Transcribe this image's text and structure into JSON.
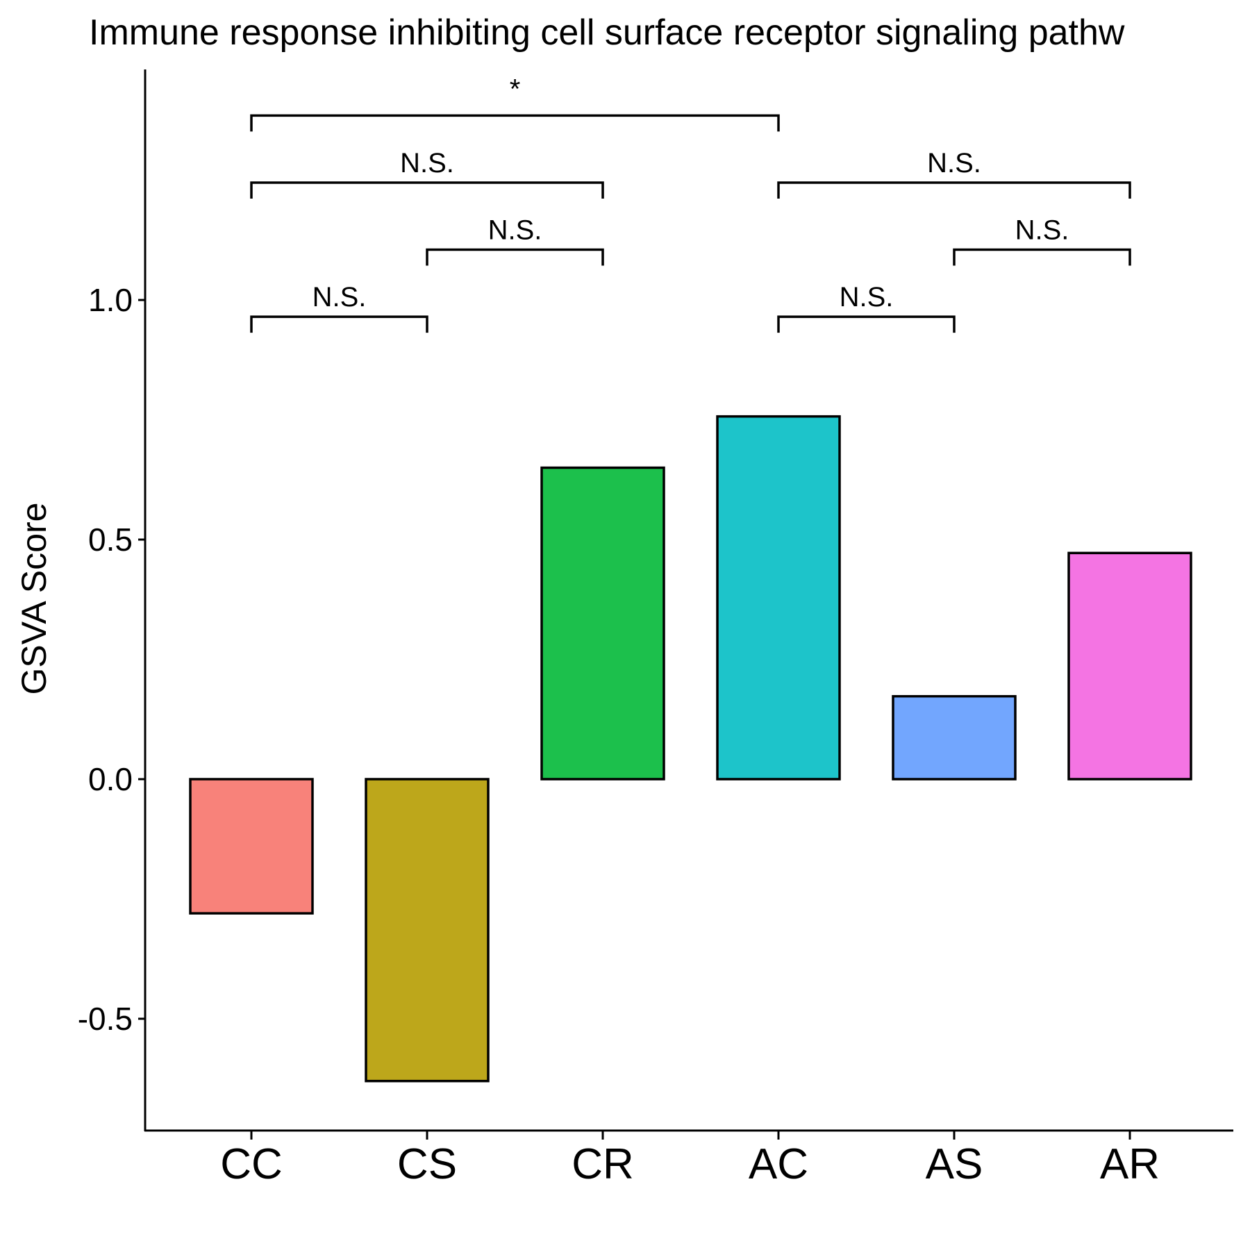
{
  "chart_data": {
    "type": "bar",
    "title": "Immune response inhibiting cell surface receptor signaling pathw",
    "xlabel": "",
    "ylabel": "GSVA Score",
    "categories": [
      "CC",
      "CS",
      "CR",
      "AC",
      "AS",
      "AR"
    ],
    "values": [
      -0.28,
      -0.63,
      0.65,
      0.757,
      0.173,
      0.472
    ],
    "colors": [
      "#F8827A",
      "#BDA71B",
      "#1CC04C",
      "#1DC4CA",
      "#72A6FE",
      "#F474E3"
    ],
    "ylim": [
      -0.73,
      1.48
    ],
    "yticks": [
      -0.5,
      0.0,
      0.5,
      1.0
    ],
    "ytick_labels": [
      "-0.5",
      "0.0",
      "0.5",
      "1.0"
    ],
    "grid": false,
    "legend": "none",
    "comparisons": [
      {
        "from": "CC",
        "to": "CS",
        "label": "N.S.",
        "y": 0.965
      },
      {
        "from": "CS",
        "to": "CR",
        "label": "N.S.",
        "y": 1.105
      },
      {
        "from": "CC",
        "to": "CR",
        "label": "N.S.",
        "y": 1.245
      },
      {
        "from": "CC",
        "to": "AC",
        "label": "*",
        "y": 1.385
      },
      {
        "from": "AC",
        "to": "AS",
        "label": "N.S.",
        "y": 0.965
      },
      {
        "from": "AS",
        "to": "AR",
        "label": "N.S.",
        "y": 1.105
      },
      {
        "from": "AC",
        "to": "AR",
        "label": "N.S.",
        "y": 1.245
      }
    ]
  }
}
